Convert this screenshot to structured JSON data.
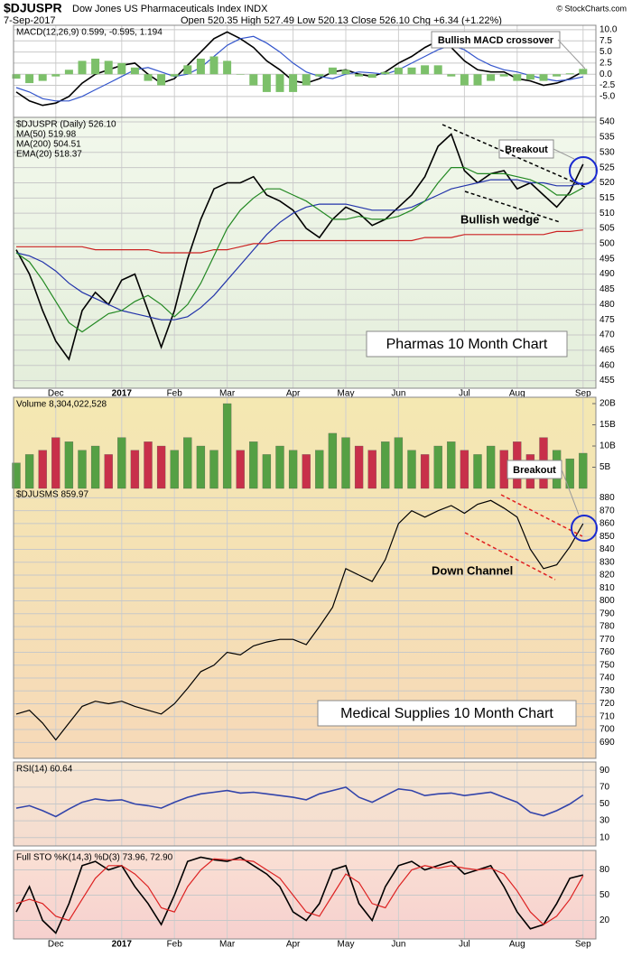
{
  "header": {
    "symbol": "$DJUSPR",
    "name": "Dow Jones US Pharmaceuticals Index INDX",
    "date": "7-Sep-2017",
    "quote": "Open 520.35 High 527.49 Low 520.13 Close 526.10 Chg +6.34 (+1.22%)",
    "credit": "© StockCharts.com"
  },
  "chart_data": [
    {
      "type": "macd",
      "legend": "MACD(12,26,9) 0.599, -0.595, 1.194",
      "ylim": [
        -9.7,
        11
      ],
      "yticks": [
        {
          "value": -5,
          "label": "-5.0"
        },
        -2.5,
        {
          "value": 0,
          "label": "0.0"
        },
        2.5,
        {
          "value": 5,
          "label": "5.0"
        },
        7.5,
        {
          "value": 10,
          "label": "10.0"
        }
      ],
      "grid": true,
      "series": [
        {
          "color": "#000000",
          "values": [
            -4,
            -6,
            -7,
            -6.5,
            -5,
            -2,
            0,
            1,
            2,
            2.5,
            0,
            -2,
            -1,
            2,
            5,
            8,
            9.5,
            8,
            6,
            3,
            1,
            -1.5,
            -2,
            -1,
            0.5,
            1,
            0,
            -0.5,
            0.5,
            2.5,
            4,
            6,
            7.5,
            6,
            3,
            1,
            0.5,
            0.5,
            -1,
            -1.5,
            -2.5,
            -2,
            -1,
            0.599
          ]
        },
        {
          "color": "#3355cc",
          "values": [
            -3,
            -4,
            -5.5,
            -6,
            -6,
            -5,
            -3.5,
            -2,
            -0.5,
            1,
            1.5,
            0.5,
            -0.5,
            0,
            1.5,
            4,
            6.5,
            8,
            8.5,
            7,
            5,
            2.5,
            0.5,
            -0.5,
            -1,
            0,
            0.5,
            0.3,
            0,
            1,
            2.5,
            4,
            5.5,
            6.5,
            5.5,
            3.5,
            2,
            1,
            0.5,
            -0.3,
            -1,
            -1.5,
            -1.2,
            -0.595
          ]
        },
        {
          "color": "#7cc06a",
          "style": "bar",
          "values": [
            -1,
            -2,
            -1.5,
            -0.5,
            1,
            3,
            3.5,
            3,
            2.5,
            1.5,
            -1.5,
            -2.5,
            -0.5,
            2,
            3.5,
            4,
            3,
            0,
            -2.5,
            -4,
            -4,
            -4,
            -2.5,
            -0.5,
            1.5,
            1,
            -0.5,
            -0.8,
            0.5,
            1.5,
            1.5,
            2,
            2,
            -0.5,
            -2.5,
            -2.5,
            -1.5,
            -0.5,
            -1.5,
            -1.2,
            -1.5,
            -0.5,
            0.2,
            1.194
          ]
        }
      ],
      "annotations": [
        "Bullish MACD crossover"
      ]
    },
    {
      "type": "line",
      "categories": [
        null,
        null,
        null,
        "Dec",
        null,
        null,
        null,
        null,
        "2017",
        null,
        null,
        null,
        "Feb",
        null,
        null,
        null,
        "Mar",
        null,
        null,
        null,
        null,
        "Apr",
        null,
        null,
        null,
        "May",
        null,
        null,
        null,
        "Jun",
        null,
        null,
        null,
        null,
        "Jul",
        null,
        null,
        null,
        "Aug",
        null,
        null,
        null,
        null,
        "Sep"
      ],
      "ylim": [
        452.5,
        541.5
      ],
      "yticks": [
        455,
        460,
        465,
        470,
        475,
        480,
        485,
        490,
        495,
        500,
        505,
        510,
        515,
        520,
        525,
        530,
        535,
        540
      ],
      "grid": true,
      "series": [
        {
          "name": "$DJUSPR (Daily) 526.10",
          "color": "#000000",
          "values": [
            498,
            490,
            478,
            468,
            462,
            478,
            484,
            480,
            488,
            490,
            478,
            466,
            478,
            495,
            508,
            518,
            520,
            520,
            522,
            516,
            514,
            511,
            505,
            502,
            508,
            512,
            510,
            506,
            508,
            512,
            516,
            522,
            532,
            536,
            524,
            520,
            523,
            524,
            518,
            520,
            516,
            512,
            517,
            526.1
          ]
        },
        {
          "name": "MA(50) 519.98",
          "color": "#2233aa",
          "values": [
            497,
            496,
            494,
            491,
            487,
            484,
            482,
            480,
            478,
            477,
            476,
            475,
            475,
            476,
            479,
            483,
            488,
            493,
            498,
            503,
            507,
            510,
            512,
            513,
            513,
            513,
            512,
            511,
            511,
            511,
            512,
            514,
            516,
            518,
            519,
            520,
            521,
            521,
            521,
            520,
            520,
            519,
            519,
            519.98
          ]
        },
        {
          "name": "MA(200) 504.51",
          "color": "#cc2222",
          "values": [
            499,
            499,
            499,
            499,
            499,
            499,
            498,
            498,
            498,
            498,
            498,
            497,
            497,
            497,
            497,
            498,
            498,
            499,
            500,
            500,
            501,
            501,
            501,
            501,
            501,
            501,
            501,
            501,
            501,
            501,
            501,
            502,
            502,
            502,
            503,
            503,
            503,
            503,
            503,
            503,
            503,
            504,
            504,
            504.51
          ]
        },
        {
          "name": "EMA(20) 518.37",
          "color": "#228822",
          "values": [
            497,
            494,
            488,
            481,
            474,
            471,
            474,
            477,
            478,
            481,
            483,
            480,
            476,
            480,
            487,
            496,
            505,
            511,
            515,
            518,
            518,
            516,
            514,
            511,
            508,
            508,
            509,
            508,
            508,
            509,
            511,
            514,
            520,
            525,
            525,
            523,
            523,
            523,
            522,
            521,
            519,
            516,
            516,
            518.37
          ]
        }
      ],
      "annotations": [
        "Breakout",
        "Bullish wedge",
        "Pharmas 10 Month Chart"
      ]
    },
    {
      "type": "bar_line",
      "ylim": [
        679,
        888
      ],
      "yticks": [
        690,
        700,
        710,
        720,
        730,
        740,
        750,
        760,
        770,
        780,
        790,
        800,
        810,
        820,
        830,
        840,
        850,
        860,
        870,
        880
      ],
      "grid": true,
      "y2lim": [
        0,
        21500000000
      ],
      "y2ticks": [
        {
          "value": 5000000000,
          "label": "5B"
        },
        {
          "value": 10000000000,
          "label": "10B"
        },
        {
          "value": 15000000000,
          "label": "15B"
        },
        {
          "value": 20000000000,
          "label": "20B"
        }
      ],
      "series": [
        {
          "name": "Volume 8,304,022,528",
          "axis": "y2",
          "style": "bar",
          "color": "#55a044",
          "down_color": "#c8304a",
          "values": [
            6000000000,
            8000000000,
            9000000000,
            12000000000,
            11000000000,
            9000000000,
            10000000000,
            8000000000,
            12000000000,
            9000000000,
            11000000000,
            10000000000,
            9000000000,
            12000000000,
            10000000000,
            9000000000,
            20000000000,
            9000000000,
            11000000000,
            8000000000,
            10000000000,
            9000000000,
            8000000000,
            9000000000,
            13000000000,
            12000000000,
            10000000000,
            9000000000,
            11000000000,
            12000000000,
            9000000000,
            8000000000,
            10000000000,
            11000000000,
            9000000000,
            8000000000,
            10000000000,
            9000000000,
            11000000000,
            8000000000,
            12000000000,
            9000000000,
            7000000000,
            8304022528
          ]
        },
        {
          "name": "$DJUSMS 859.97",
          "color": "#000000",
          "values": [
            712,
            715,
            705,
            692,
            705,
            718,
            722,
            720,
            722,
            718,
            715,
            712,
            720,
            732,
            745,
            750,
            760,
            758,
            765,
            768,
            770,
            770,
            766,
            780,
            795,
            825,
            820,
            815,
            832,
            860,
            870,
            865,
            870,
            874,
            868,
            875,
            878,
            872,
            865,
            840,
            825,
            828,
            842,
            859.97
          ]
        }
      ],
      "annotations": [
        "Breakout",
        "Down Channel",
        "Medical Supplies 10 Month Chart"
      ]
    },
    {
      "type": "line",
      "ylim": [
        0,
        100
      ],
      "yticks": [
        10,
        30,
        50,
        70,
        90
      ],
      "grid": true,
      "series": [
        {
          "name": "RSI(14) 60.64",
          "color": "#3344aa",
          "values": [
            45,
            48,
            42,
            35,
            44,
            52,
            56,
            54,
            55,
            50,
            48,
            45,
            52,
            58,
            62,
            64,
            66,
            63,
            64,
            62,
            60,
            58,
            55,
            62,
            66,
            70,
            58,
            52,
            60,
            68,
            66,
            60,
            62,
            63,
            60,
            62,
            64,
            58,
            52,
            40,
            36,
            42,
            50,
            60.64
          ]
        }
      ]
    },
    {
      "type": "line",
      "legend": "Full STO %K(14,3) %D(3) 73.96, 72.90",
      "categories": [
        null,
        null,
        null,
        "Dec",
        null,
        null,
        null,
        null,
        "2017",
        null,
        null,
        null,
        "Feb",
        null,
        null,
        null,
        "Mar",
        null,
        null,
        null,
        null,
        "Apr",
        null,
        null,
        null,
        "May",
        null,
        null,
        null,
        "Jun",
        null,
        null,
        null,
        null,
        "Jul",
        null,
        null,
        null,
        "Aug",
        null,
        null,
        null,
        null,
        "Sep"
      ],
      "ylim": [
        -2,
        103
      ],
      "yticks": [
        20,
        50,
        80
      ],
      "grid": true,
      "series": [
        {
          "color": "#000000",
          "values": [
            30,
            60,
            20,
            5,
            40,
            85,
            90,
            80,
            85,
            60,
            40,
            15,
            50,
            90,
            95,
            92,
            90,
            95,
            85,
            75,
            60,
            30,
            20,
            40,
            80,
            85,
            40,
            20,
            60,
            85,
            90,
            80,
            85,
            90,
            75,
            80,
            85,
            60,
            30,
            10,
            15,
            40,
            70,
            73.96
          ]
        },
        {
          "color": "#dd2222",
          "values": [
            40,
            45,
            40,
            25,
            20,
            45,
            70,
            85,
            85,
            75,
            60,
            35,
            30,
            60,
            80,
            93,
            92,
            92,
            90,
            80,
            70,
            50,
            30,
            25,
            50,
            75,
            65,
            40,
            35,
            60,
            80,
            85,
            82,
            85,
            82,
            80,
            82,
            75,
            55,
            30,
            15,
            25,
            45,
            72.9
          ]
        }
      ]
    }
  ]
}
